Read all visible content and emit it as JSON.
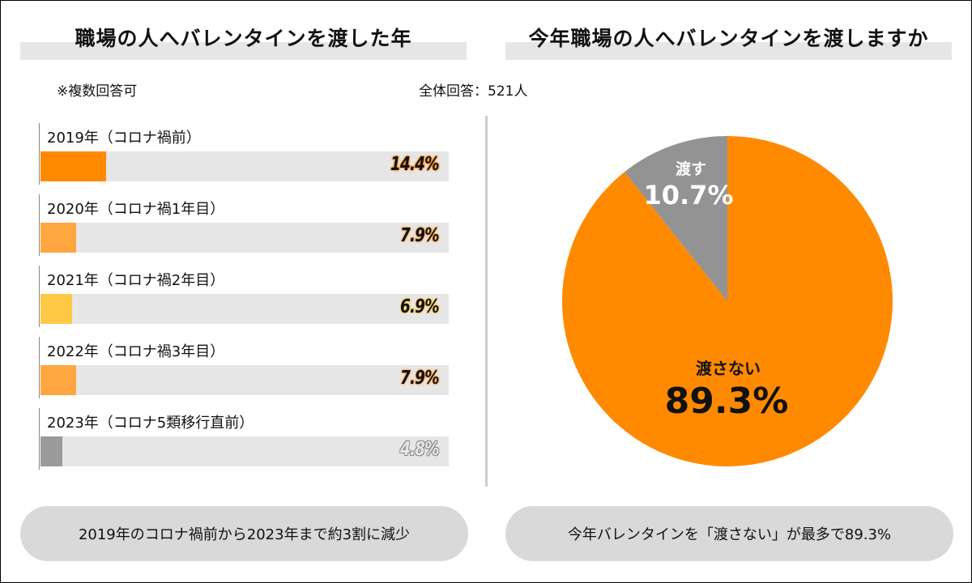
{
  "left_panel": {
    "title": "職場の人へバレンタインを渡した年",
    "note": "※複数回答可",
    "summary": "2019年のコロナ禍前から2023年まで約3割に減少"
  },
  "right_panel": {
    "title": "今年職場の人へバレンタインを渡しますか",
    "respondents": "全体回答：521人",
    "summary": "今年バレンタインを「渡さない」が最多で89.3%"
  },
  "chart_data": [
    {
      "type": "bar",
      "orientation": "horizontal",
      "title": "職場の人へバレンタインを渡した年",
      "categories": [
        "2019年（コロナ禍前）",
        "2020年（コロナ禍1年目）",
        "2021年（コロナ禍2年目）",
        "2022年（コロナ禍3年目）",
        "2023年（コロナ5類移行直前）"
      ],
      "values": [
        14.4,
        7.9,
        6.9,
        7.9,
        4.8
      ],
      "value_labels": [
        "14.4%",
        "7.9%",
        "6.9%",
        "7.9%",
        "4.8%"
      ],
      "colors": [
        "#ff8a00",
        "#ffa640",
        "#ffc845",
        "#ffa640",
        "#9a9a9a"
      ],
      "track_color": "#e6e6e6",
      "unit": "%"
    },
    {
      "type": "pie",
      "title": "今年職場の人へバレンタインを渡しますか",
      "slices": [
        {
          "label": "渡さない",
          "value": 89.3,
          "value_label": "89.3%",
          "color": "#ff8a00"
        },
        {
          "label": "渡す",
          "value": 10.7,
          "value_label": "10.7%",
          "color": "#939393"
        }
      ]
    }
  ]
}
